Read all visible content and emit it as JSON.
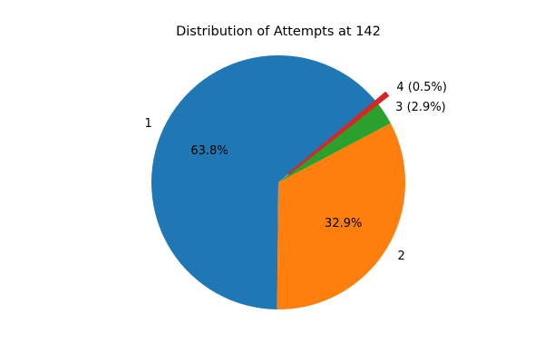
{
  "chart_data": {
    "type": "pie",
    "title": "Distribution of Attempts at 142",
    "categories": [
      "1",
      "2",
      "3",
      "4"
    ],
    "values": [
      63.8,
      32.9,
      2.9,
      0.5
    ],
    "inner_labels": [
      "63.8%",
      "32.9%",
      "",
      ""
    ],
    "outer_labels": [
      "1",
      "2",
      "3 (2.9%)",
      "4 (0.5%)"
    ],
    "colors": [
      "#1f77b4",
      "#ff7f0e",
      "#2ca02c",
      "#d62728"
    ],
    "start_angle_deg": 40,
    "explode": [
      0,
      0,
      0,
      0.1
    ],
    "legend": "none",
    "grid": false
  }
}
